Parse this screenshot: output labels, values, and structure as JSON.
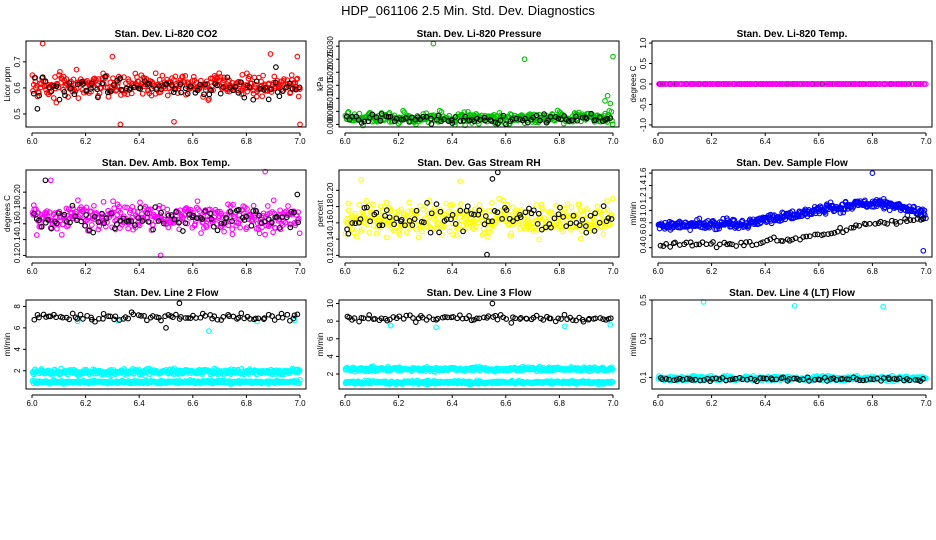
{
  "title": "HDP_061106  2.5 Min. Std. Dev. Diagnostics",
  "colors": {
    "red": "#ff0000",
    "black": "#000000",
    "green": "#00c000",
    "magenta": "#ff00ff",
    "yellow": "#ffff00",
    "blue": "#0000ff",
    "cyan": "#00ffff"
  },
  "chart_data": [
    {
      "type": "scatter",
      "title": "Stan. Dev. Li-820 CO2",
      "ylabel": "Licor ppm",
      "xlim": [
        6.0,
        7.0
      ],
      "ylim": [
        0.45,
        0.78
      ],
      "xticks": [
        6.0,
        6.2,
        6.4,
        6.6,
        6.8,
        7.0
      ],
      "xtick_labels": [
        "6.0",
        "6.2",
        "6.4",
        "6.6",
        "6.8",
        "7.0"
      ],
      "yticks": [
        0.5,
        0.6,
        0.7
      ],
      "ytick_labels": [
        "0.5",
        "0.6",
        "0.7"
      ],
      "series": [
        {
          "name": "red",
          "color": "#ff0000",
          "pattern": "band",
          "n": 360,
          "center": 0.61,
          "spread": 0.075,
          "x": [
            6.04,
            6.89,
            6.3,
            7.0,
            6.33,
            6.53,
            6.99
          ],
          "y": [
            0.77,
            0.73,
            0.72,
            0.46,
            0.46,
            0.47,
            0.72
          ]
        },
        {
          "name": "black",
          "color": "#000000",
          "pattern": "band",
          "n": 90,
          "center": 0.6,
          "spread": 0.06,
          "x": [
            6.02,
            6.91
          ],
          "y": [
            0.52,
            0.68
          ]
        }
      ]
    },
    {
      "type": "scatter",
      "title": "Stan. Dev. Li-820 Pressure",
      "ylabel": "kPa",
      "xlim": [
        6.0,
        7.0
      ],
      "ylim": [
        -0.001,
        0.032
      ],
      "xticks": [
        6.0,
        6.2,
        6.4,
        6.6,
        6.8,
        7.0
      ],
      "xtick_labels": [
        "6.0",
        "6.2",
        "6.4",
        "6.6",
        "6.8",
        "7.0"
      ],
      "yticks": [
        0.0,
        0.005,
        0.01,
        0.015,
        0.02,
        0.025,
        0.03
      ],
      "ytick_labels": [
        "0.000",
        "0.005",
        "0.010",
        "0.015",
        "0.020",
        "0.025",
        "0.030"
      ],
      "series": [
        {
          "name": "green",
          "color": "#00c000",
          "pattern": "band",
          "n": 360,
          "center": 0.0025,
          "spread": 0.0035,
          "x": [
            6.33,
            6.67,
            7.0,
            6.98,
            6.97,
            6.99
          ],
          "y": [
            0.031,
            0.025,
            0.026,
            0.011,
            0.009,
            0.008
          ]
        },
        {
          "name": "black",
          "color": "#000000",
          "pattern": "band",
          "n": 90,
          "center": 0.002,
          "spread": 0.003,
          "x": [],
          "y": []
        }
      ]
    },
    {
      "type": "scatter",
      "title": "Stan. Dev. Li-820 Temp.",
      "ylabel": "degrees C",
      "xlim": [
        6.0,
        7.0
      ],
      "ylim": [
        -1.05,
        1.05
      ],
      "xticks": [
        6.0,
        6.2,
        6.4,
        6.6,
        6.8,
        7.0
      ],
      "xtick_labels": [
        "6.0",
        "6.2",
        "6.4",
        "6.6",
        "6.8",
        "7.0"
      ],
      "yticks": [
        -1.0,
        -0.5,
        0.0,
        0.5,
        1.0
      ],
      "ytick_labels": [
        "-1.0",
        "-0.5",
        "0.0",
        "0.5",
        "1.0"
      ],
      "series": [
        {
          "name": "black",
          "color": "#000000",
          "pattern": "flat",
          "n": 85,
          "center": 0.0,
          "spread": 0.0,
          "x": [],
          "y": []
        },
        {
          "name": "magenta",
          "color": "#ff00ff",
          "pattern": "flat",
          "n": 170,
          "center": 0.0,
          "spread": 0.0,
          "x": [],
          "y": []
        }
      ]
    },
    {
      "type": "scatter",
      "title": "Stan. Dev. Amb. Box Temp.",
      "ylabel": "degrees C",
      "xlim": [
        6.0,
        7.0
      ],
      "ylim": [
        0.118,
        0.228
      ],
      "xticks": [
        6.0,
        6.2,
        6.4,
        6.6,
        6.8,
        7.0
      ],
      "xtick_labels": [
        "6.0",
        "6.2",
        "6.4",
        "6.6",
        "6.8",
        "7.0"
      ],
      "yticks": [
        0.12,
        0.14,
        0.16,
        0.18,
        0.2
      ],
      "ytick_labels": [
        "0.12",
        "0.14",
        "0.16",
        "0.18",
        "0.20"
      ],
      "series": [
        {
          "name": "magenta",
          "color": "#ff00ff",
          "pattern": "band",
          "n": 380,
          "center": 0.168,
          "spread": 0.03,
          "x": [
            6.48,
            6.87,
            6.07
          ],
          "y": [
            0.12,
            0.226,
            0.215
          ]
        },
        {
          "name": "black",
          "color": "#000000",
          "pattern": "band",
          "n": 90,
          "center": 0.165,
          "spread": 0.025,
          "x": [
            6.05,
            6.99
          ],
          "y": [
            0.215,
            0.197
          ]
        }
      ]
    },
    {
      "type": "scatter",
      "title": "Stan. Dev. Gas Stream RH",
      "ylabel": "percent",
      "xlim": [
        6.0,
        7.0
      ],
      "ylim": [
        0.118,
        0.225
      ],
      "xticks": [
        6.0,
        6.2,
        6.4,
        6.6,
        6.8,
        7.0
      ],
      "xtick_labels": [
        "6.0",
        "6.2",
        "6.4",
        "6.6",
        "6.8",
        "7.0"
      ],
      "yticks": [
        0.12,
        0.14,
        0.16,
        0.18,
        0.2
      ],
      "ytick_labels": [
        "0.12",
        "0.14",
        "0.16",
        "0.18",
        "0.20"
      ],
      "series": [
        {
          "name": "yellow",
          "color": "#ffff00",
          "pattern": "band",
          "n": 380,
          "center": 0.165,
          "spread": 0.032,
          "x": [
            6.06,
            6.43
          ],
          "y": [
            0.213,
            0.211
          ]
        },
        {
          "name": "black",
          "color": "#000000",
          "pattern": "band",
          "n": 90,
          "center": 0.165,
          "spread": 0.028,
          "x": [
            6.57,
            6.53,
            6.55
          ],
          "y": [
            0.222,
            0.121,
            0.214
          ]
        }
      ]
    },
    {
      "type": "scatter",
      "title": "Stan. Dev. Sample Flow",
      "ylabel": "ml/min",
      "xlim": [
        6.0,
        7.0
      ],
      "ylim": [
        0.25,
        1.65
      ],
      "xticks": [
        6.0,
        6.2,
        6.4,
        6.6,
        6.8,
        7.0
      ],
      "xtick_labels": [
        "6.0",
        "6.2",
        "6.4",
        "6.6",
        "6.8",
        "7.0"
      ],
      "yticks": [
        0.4,
        0.6,
        0.8,
        1.0,
        1.2,
        1.4,
        1.6
      ],
      "ytick_labels": [
        "0.4",
        "0.6",
        "0.8",
        "1.0",
        "1.2",
        "1.4",
        "1.6"
      ],
      "series": [
        {
          "name": "blue",
          "color": "#0000ff",
          "pattern": "trend",
          "n": 420,
          "knots_x": [
            6.0,
            6.3,
            6.4,
            6.6,
            6.75,
            6.85,
            6.9,
            7.0
          ],
          "knots_y": [
            0.75,
            0.78,
            0.85,
            1.0,
            1.1,
            1.1,
            1.05,
            0.95
          ],
          "spread": 0.13,
          "x": [
            6.8,
            6.99
          ],
          "y": [
            1.6,
            0.35
          ]
        },
        {
          "name": "black",
          "color": "#000000",
          "pattern": "trend",
          "n": 80,
          "knots_x": [
            6.0,
            6.3,
            6.6,
            6.8,
            7.0
          ],
          "knots_y": [
            0.45,
            0.45,
            0.6,
            0.8,
            0.85
          ],
          "spread": 0.07,
          "x": [],
          "y": []
        }
      ]
    },
    {
      "type": "scatter",
      "title": "Stan. Dev. Line 2 Flow",
      "ylabel": "ml/min",
      "xlim": [
        6.0,
        7.0
      ],
      "ylim": [
        0.3,
        8.6
      ],
      "xticks": [
        6.0,
        6.2,
        6.4,
        6.6,
        6.8,
        7.0
      ],
      "xtick_labels": [
        "6.0",
        "6.2",
        "6.4",
        "6.6",
        "6.8",
        "7.0"
      ],
      "yticks": [
        2,
        4,
        6,
        8
      ],
      "ytick_labels": [
        "2",
        "4",
        "6",
        "8"
      ],
      "series": [
        {
          "name": "cyan",
          "color": "#00ffff",
          "pattern": "band",
          "n": 400,
          "center": 1.9,
          "spread": 0.45,
          "x": [
            6.17,
            6.66,
            6.32,
            6.84,
            6.98
          ],
          "y": [
            6.6,
            5.7,
            6.7,
            6.6,
            6.7
          ]
        },
        {
          "name": "cyan",
          "color": "#00ffff",
          "pattern": "band",
          "n": 400,
          "center": 0.95,
          "spread": 0.25,
          "x": [],
          "y": []
        },
        {
          "name": "black",
          "color": "#000000",
          "pattern": "band",
          "n": 90,
          "center": 7.0,
          "spread": 0.6,
          "x": [
            6.55,
            6.5
          ],
          "y": [
            8.3,
            6.0
          ]
        }
      ]
    },
    {
      "type": "scatter",
      "title": "Stan. Dev. Line 3 Flow",
      "ylabel": "ml/min",
      "xlim": [
        6.0,
        7.0
      ],
      "ylim": [
        0.3,
        10.4
      ],
      "xticks": [
        6.0,
        6.2,
        6.4,
        6.6,
        6.8,
        7.0
      ],
      "xtick_labels": [
        "6.0",
        "6.2",
        "6.4",
        "6.6",
        "6.8",
        "7.0"
      ],
      "yticks": [
        2,
        4,
        6,
        8,
        10
      ],
      "ytick_labels": [
        "2",
        "4",
        "6",
        "8",
        "10"
      ],
      "series": [
        {
          "name": "cyan",
          "color": "#00ffff",
          "pattern": "band",
          "n": 400,
          "center": 2.55,
          "spread": 0.4,
          "x": [
            6.17,
            6.34,
            6.82,
            6.99
          ],
          "y": [
            7.5,
            7.3,
            7.4,
            7.6
          ]
        },
        {
          "name": "cyan",
          "color": "#00ffff",
          "pattern": "band",
          "n": 400,
          "center": 1.05,
          "spread": 0.3,
          "x": [],
          "y": []
        },
        {
          "name": "black",
          "color": "#000000",
          "pattern": "band",
          "n": 90,
          "center": 8.3,
          "spread": 0.7,
          "x": [
            6.55
          ],
          "y": [
            10.0
          ]
        }
      ]
    },
    {
      "type": "scatter",
      "title": "Stan. Dev. Line 4 (LT) Flow",
      "ylabel": "ml/min",
      "xlim": [
        6.0,
        7.0
      ],
      "ylim": [
        0.04,
        0.5
      ],
      "xticks": [
        6.0,
        6.2,
        6.4,
        6.6,
        6.8,
        7.0
      ],
      "xtick_labels": [
        "6.0",
        "6.2",
        "6.4",
        "6.6",
        "6.8",
        "7.0"
      ],
      "yticks": [
        0.1,
        0.3,
        0.5
      ],
      "ytick_labels": [
        "0.1",
        "0.3",
        "0.5"
      ],
      "series": [
        {
          "name": "cyan",
          "color": "#00ffff",
          "pattern": "band",
          "n": 420,
          "center": 0.095,
          "spread": 0.02,
          "x": [
            6.17,
            6.51,
            6.84
          ],
          "y": [
            0.49,
            0.47,
            0.465
          ]
        },
        {
          "name": "black",
          "color": "#000000",
          "pattern": "band",
          "n": 80,
          "center": 0.09,
          "spread": 0.016,
          "x": [],
          "y": []
        }
      ]
    }
  ]
}
